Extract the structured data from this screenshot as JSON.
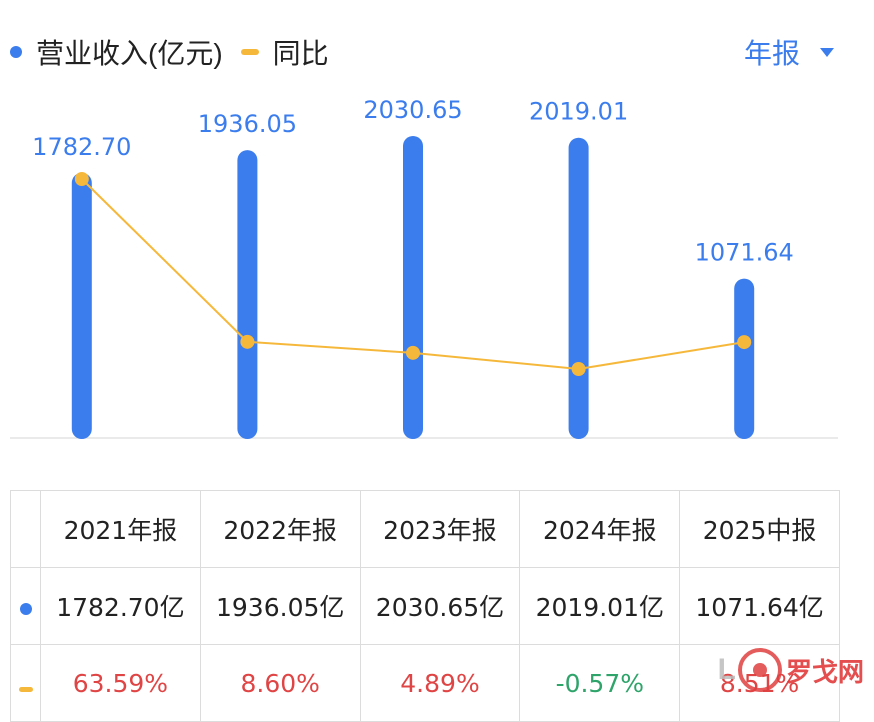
{
  "legend": {
    "revenue_label": "营业收入(亿元)",
    "yoy_label": "同比"
  },
  "period_selector": {
    "label": "年报"
  },
  "colors": {
    "bar": "#3b7ded",
    "line": "#f6b83b",
    "label": "#3b7ded",
    "positive": "#e04545",
    "negative": "#2ea46a"
  },
  "chart_data": {
    "type": "bar",
    "categories": [
      "2021年报",
      "2022年报",
      "2023年报",
      "2024年报",
      "2025中报"
    ],
    "series": [
      {
        "name": "营业收入(亿元)",
        "type": "bar",
        "values": [
          1782.7,
          1936.05,
          2030.65,
          2019.01,
          1071.64
        ],
        "labels": [
          "1782.70",
          "1936.05",
          "2030.65",
          "2019.01",
          "1071.64"
        ]
      },
      {
        "name": "同比",
        "type": "line",
        "values": [
          63.59,
          8.6,
          4.89,
          -0.57,
          8.51
        ]
      }
    ],
    "legend_position": "top-left"
  },
  "table": {
    "headers": [
      "2021年报",
      "2022年报",
      "2023年报",
      "2024年报",
      "2025中报"
    ],
    "revenue": [
      "1782.70亿",
      "1936.05亿",
      "2030.65亿",
      "2019.01亿",
      "1071.64亿"
    ],
    "yoy": [
      "63.59%",
      "8.60%",
      "4.89%",
      "-0.57%",
      "8.51%"
    ]
  },
  "watermark": {
    "prefix": "L",
    "text": "罗戈网"
  }
}
